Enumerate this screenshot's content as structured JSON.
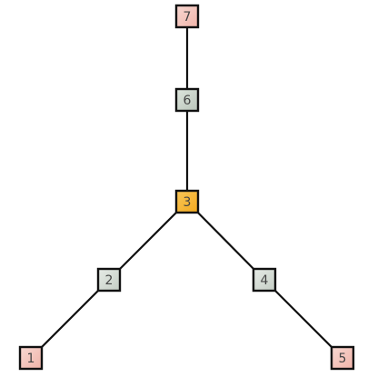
{
  "diagram": {
    "type": "tree",
    "nodes": [
      {
        "id": "n1",
        "label": "1",
        "color": "#f0b3a8",
        "gradient_to": "#f8d8d2"
      },
      {
        "id": "n2",
        "label": "2",
        "color": "#c4cdc4",
        "gradient_to": "#e6ebe6"
      },
      {
        "id": "n3",
        "label": "3",
        "color": "#f4a91c",
        "gradient_to": "#f8c65a"
      },
      {
        "id": "n4",
        "label": "4",
        "color": "#c4cdc4",
        "gradient_to": "#e6ebe6"
      },
      {
        "id": "n5",
        "label": "5",
        "color": "#f0b3a8",
        "gradient_to": "#f8d8d2"
      },
      {
        "id": "n6",
        "label": "6",
        "color": "#b8c4b8",
        "gradient_to": "#dde5dd"
      },
      {
        "id": "n7",
        "label": "7",
        "color": "#f0b3a8",
        "gradient_to": "#f8d8d2"
      }
    ],
    "edges": [
      {
        "from": "n7",
        "to": "n6"
      },
      {
        "from": "n6",
        "to": "n3"
      },
      {
        "from": "n3",
        "to": "n2"
      },
      {
        "from": "n3",
        "to": "n4"
      },
      {
        "from": "n2",
        "to": "n1"
      },
      {
        "from": "n4",
        "to": "n5"
      }
    ]
  }
}
